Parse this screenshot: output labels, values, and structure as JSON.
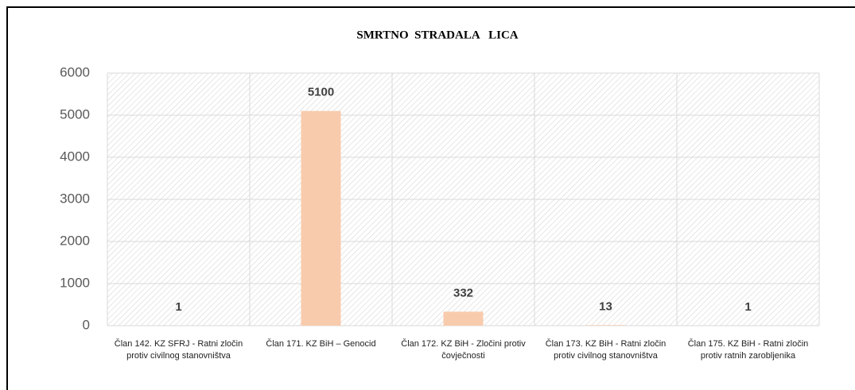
{
  "chart_data": {
    "type": "bar",
    "title": "SMRTNO  STRADALA   LICA",
    "categories": [
      "Član 142. KZ SFRJ - Ratni zločin protiv civilnog stanovništva",
      "Član 171. KZ BiH – Genocid",
      "Član 172. KZ BiH - Zločini protiv čovječnosti",
      "Član 173. KZ BiH - Ratni zločin protiv civilnog stanovništva",
      "Član 175. KZ BiH - Ratni zločin protiv ratnih zarobljenika"
    ],
    "values": [
      1,
      5100,
      332,
      13,
      1
    ],
    "color": "#f8cbad",
    "ylim": [
      0,
      6000
    ],
    "yticks": [
      0,
      1000,
      2000,
      3000,
      4000,
      5000,
      6000
    ],
    "grid": true
  }
}
